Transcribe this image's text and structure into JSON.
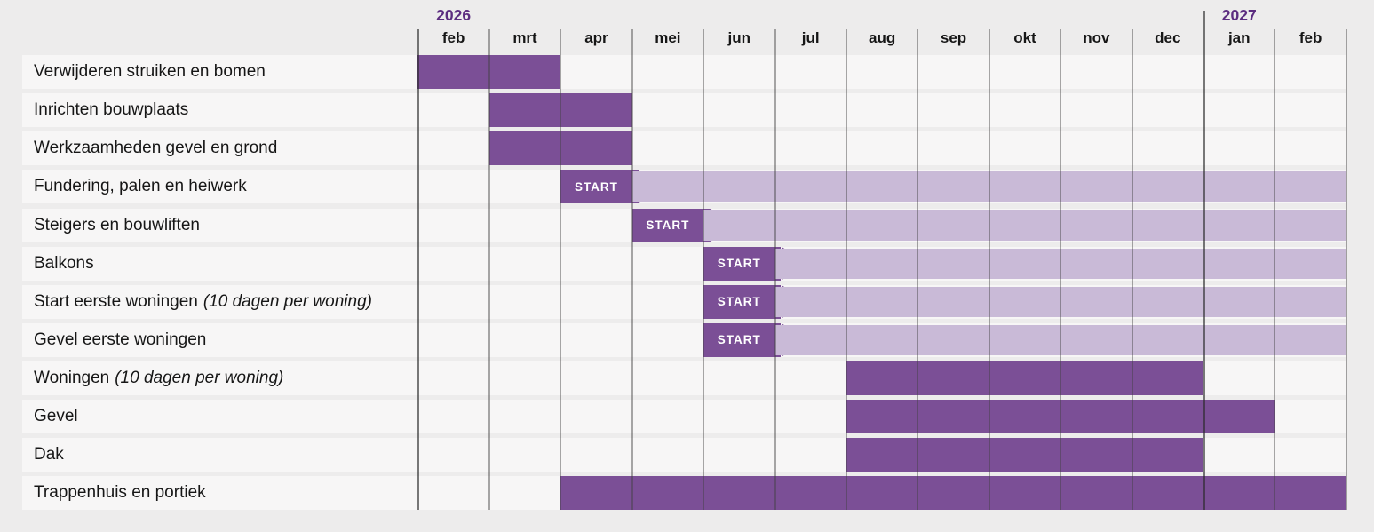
{
  "page": {
    "background": "#EDECEC"
  },
  "chart_data": {
    "type": "gantt",
    "months": [
      "feb",
      "mrt",
      "apr",
      "mei",
      "jun",
      "jul",
      "aug",
      "sep",
      "okt",
      "nov",
      "dec",
      "jan",
      "feb"
    ],
    "years": [
      {
        "label": "2026",
        "column": 0
      },
      {
        "label": "2027",
        "column": 11
      }
    ],
    "year_boundary_column": 11,
    "start_label": "START",
    "rows": [
      {
        "label": "Verwijderen struiken en bomen",
        "label_italic": "",
        "bars": [
          {
            "type": "solid",
            "start": 0,
            "end": 2
          }
        ]
      },
      {
        "label": "Inrichten bouwplaats",
        "label_italic": "",
        "bars": [
          {
            "type": "solid",
            "start": 1,
            "end": 3
          }
        ]
      },
      {
        "label": "Werkzaamheden gevel en grond",
        "label_italic": "",
        "bars": [
          {
            "type": "solid",
            "start": 1,
            "end": 3
          }
        ]
      },
      {
        "label": "Fundering, palen en heiwerk",
        "label_italic": "",
        "bars": [
          {
            "type": "start",
            "start": 2,
            "end": 3
          },
          {
            "type": "light",
            "start": 3,
            "end": 13
          }
        ]
      },
      {
        "label": "Steigers en bouwliften",
        "label_italic": "",
        "bars": [
          {
            "type": "start",
            "start": 3,
            "end": 4
          },
          {
            "type": "light",
            "start": 4,
            "end": 13
          }
        ]
      },
      {
        "label": "Balkons",
        "label_italic": "",
        "bars": [
          {
            "type": "start",
            "start": 4,
            "end": 5
          },
          {
            "type": "light",
            "start": 5,
            "end": 13
          }
        ]
      },
      {
        "label": "Start eerste woningen",
        "label_italic": "(10 dagen per woning)",
        "bars": [
          {
            "type": "start",
            "start": 4,
            "end": 5
          },
          {
            "type": "light",
            "start": 5,
            "end": 13
          }
        ]
      },
      {
        "label": "Gevel eerste woningen",
        "label_italic": "",
        "bars": [
          {
            "type": "start",
            "start": 4,
            "end": 5
          },
          {
            "type": "light",
            "start": 5,
            "end": 13
          }
        ]
      },
      {
        "label": "Woningen",
        "label_italic": "(10 dagen per woning)",
        "bars": [
          {
            "type": "solid",
            "start": 6,
            "end": 11
          }
        ]
      },
      {
        "label": "Gevel",
        "label_italic": "",
        "bars": [
          {
            "type": "solid",
            "start": 6,
            "end": 12
          }
        ]
      },
      {
        "label": "Dak",
        "label_italic": "",
        "bars": [
          {
            "type": "solid",
            "start": 6,
            "end": 11
          }
        ]
      },
      {
        "label": "Trappenhuis en portiek",
        "label_italic": "",
        "bars": [
          {
            "type": "solid",
            "start": 2,
            "end": 13
          }
        ]
      }
    ],
    "colors": {
      "bar_dark": "#7B4F96",
      "bar_light": "#C9BAD7",
      "year_text": "#5C2D80",
      "label_text": "#161616",
      "row_strip": "#F7F6F6",
      "page_bg": "#EDECEC"
    }
  }
}
